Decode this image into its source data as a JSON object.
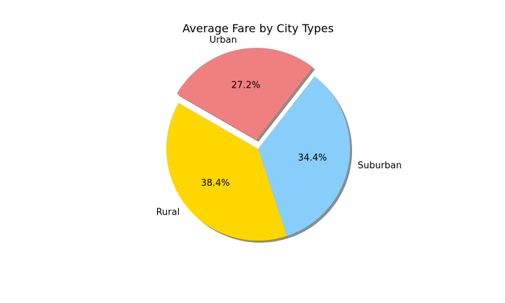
{
  "chart_data": {
    "type": "pie",
    "title": "Average Fare by City Types",
    "categories": [
      "Rural",
      "Suburban",
      "Urban"
    ],
    "values": [
      38.4,
      34.4,
      27.2
    ],
    "percent_labels": [
      "38.4%",
      "34.4%",
      "27.2%"
    ],
    "colors": [
      "#FFD700",
      "#87CEFA",
      "#F08080"
    ],
    "explode": [
      0,
      0,
      0.1
    ],
    "shadow": true,
    "start_angle_deg": 150
  }
}
